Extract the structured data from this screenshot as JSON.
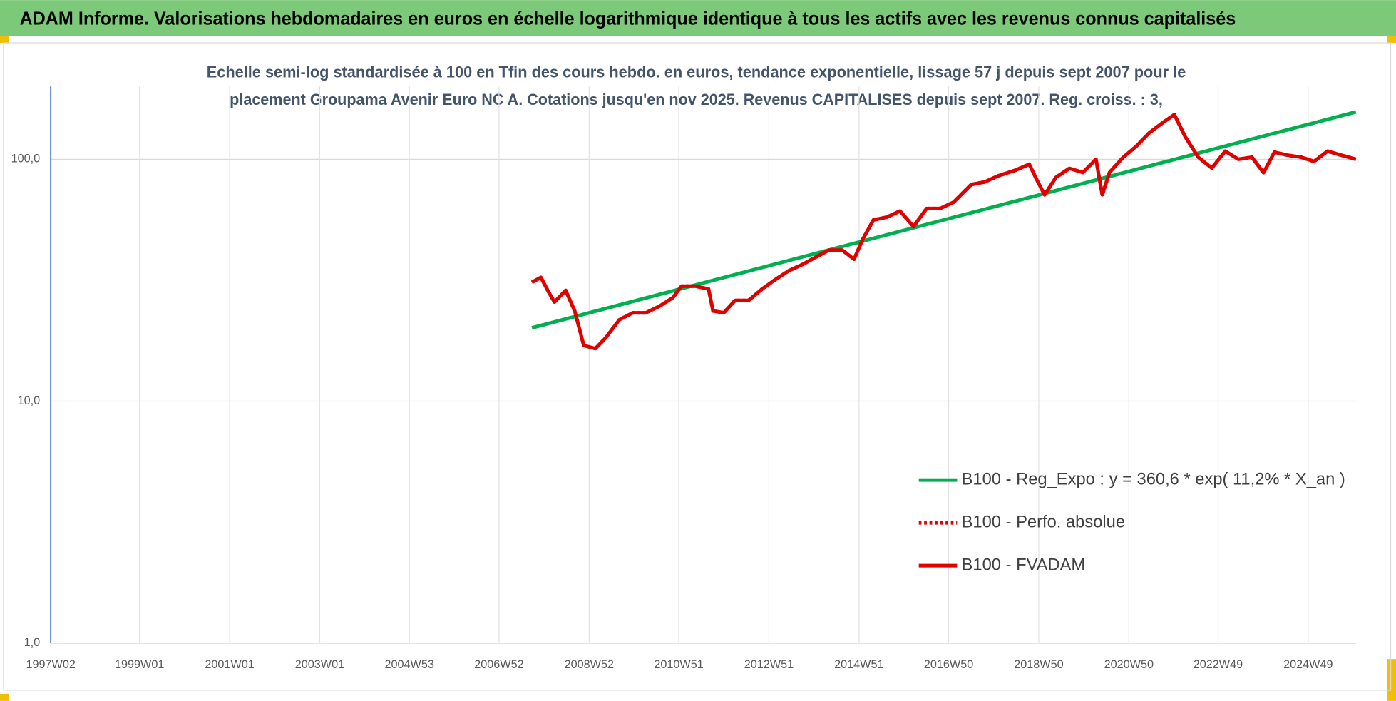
{
  "chart_data": {
    "type": "line",
    "title": "ADAM Informe. Valorisations hebdomadaires en euros en échelle logarithmique identique à tous les actifs avec les revenus connus capitalisés",
    "subtitle": [
      "Echelle semi-log standardisée à 100 en Tfin des cours hebdo. en euros, tendance exponentielle, lissage 57 j depuis sept 2007 pour le",
      "placement Groupama Avenir Euro NC A. Cotations jusqu'en nov 2025. Revenus CAPITALISES depuis sept 2007. Reg. croiss. : 3,"
    ],
    "log_scale": true,
    "grid": true,
    "legend": "lower-right",
    "xlim": [
      1997.03,
      2026.0
    ],
    "xticks": [
      {
        "value": 1997.03,
        "label": "1997W02"
      },
      {
        "value": 1999.0,
        "label": "1999W01"
      },
      {
        "value": 2001.0,
        "label": "2001W01"
      },
      {
        "value": 2003.0,
        "label": "2003W01"
      },
      {
        "value": 2004.99,
        "label": "2004W53"
      },
      {
        "value": 2006.98,
        "label": "2006W52"
      },
      {
        "value": 2008.98,
        "label": "2008W52"
      },
      {
        "value": 2010.97,
        "label": "2010W51"
      },
      {
        "value": 2012.97,
        "label": "2012W51"
      },
      {
        "value": 2014.97,
        "label": "2014W51"
      },
      {
        "value": 2016.96,
        "label": "2016W50"
      },
      {
        "value": 2018.96,
        "label": "2018W50"
      },
      {
        "value": 2020.96,
        "label": "2020W50"
      },
      {
        "value": 2022.94,
        "label": "2022W49"
      },
      {
        "value": 2024.94,
        "label": "2024W49"
      }
    ],
    "ylim": [
      1,
      200
    ],
    "yticks": [
      {
        "value": 1,
        "label": "1,0"
      },
      {
        "value": 10,
        "label": "10,0"
      },
      {
        "value": 100,
        "label": "100,0"
      }
    ],
    "series": [
      {
        "name": "B100 - Reg_Expo : y = 360,6 * exp( 11,2% *  X_an )",
        "color": "#00b050",
        "style": "solid",
        "x": [
          2007.71,
          2026.0
        ],
        "values": [
          20.1,
          157
        ]
      },
      {
        "name": "B100 - Perfo. absolue",
        "color": "#e00000",
        "style": "dotted",
        "x": [
          2007.71,
          2007.91,
          2008.07,
          2008.21,
          2008.46,
          2008.66,
          2008.86,
          2009.12,
          2009.35,
          2009.65,
          2009.95,
          2010.24,
          2010.54,
          2010.84,
          2011.03,
          2011.33,
          2011.63,
          2011.73,
          2011.97,
          2012.22,
          2012.52,
          2012.82,
          2013.11,
          2013.41,
          2013.71,
          2014.0,
          2014.3,
          2014.6,
          2014.86,
          2015.05,
          2015.29,
          2015.58,
          2015.88,
          2016.18,
          2016.47,
          2016.77,
          2017.07,
          2017.46,
          2017.76,
          2018.06,
          2018.45,
          2018.75,
          2018.89,
          2019.09,
          2019.34,
          2019.64,
          2019.94,
          2020.23,
          2020.37,
          2020.53,
          2020.83,
          2021.12,
          2021.42,
          2021.72,
          2021.97,
          2022.21,
          2022.5,
          2022.8,
          2023.1,
          2023.39,
          2023.69,
          2023.95,
          2024.19,
          2024.48,
          2024.78,
          2025.07,
          2025.37,
          2025.67,
          2026.0
        ],
        "values": [
          31,
          32.5,
          28.5,
          25.7,
          28.7,
          23.6,
          17.0,
          16.5,
          18.3,
          21.7,
          23.2,
          23.2,
          24.7,
          26.8,
          29.9,
          29.9,
          29.1,
          23.6,
          23.2,
          26.1,
          26.1,
          29.1,
          31.8,
          34.6,
          36.7,
          39.3,
          42.1,
          42.1,
          38.6,
          46.6,
          56.1,
          57.6,
          61.1,
          52.7,
          62.6,
          62.6,
          66.5,
          78.6,
          80.6,
          85.4,
          90.2,
          95.4,
          84.1,
          71.3,
          84.1,
          91.7,
          88.2,
          100,
          71.3,
          88.2,
          101.7,
          113,
          129,
          142,
          153,
          124,
          102,
          92,
          108,
          100,
          102,
          88,
          107,
          104,
          102,
          98,
          108,
          104,
          100
        ]
      },
      {
        "name": "B100 - FVADAM",
        "color": "#e00000",
        "style": "solid",
        "x": [
          2007.71,
          2007.91,
          2008.07,
          2008.21,
          2008.46,
          2008.66,
          2008.86,
          2009.12,
          2009.35,
          2009.65,
          2009.95,
          2010.24,
          2010.54,
          2010.84,
          2011.03,
          2011.33,
          2011.63,
          2011.73,
          2011.97,
          2012.22,
          2012.52,
          2012.82,
          2013.11,
          2013.41,
          2013.71,
          2014.0,
          2014.3,
          2014.6,
          2014.86,
          2015.05,
          2015.29,
          2015.58,
          2015.88,
          2016.18,
          2016.47,
          2016.77,
          2017.07,
          2017.46,
          2017.76,
          2018.06,
          2018.45,
          2018.75,
          2018.89,
          2019.09,
          2019.34,
          2019.64,
          2019.94,
          2020.23,
          2020.37,
          2020.53,
          2020.83,
          2021.12,
          2021.42,
          2021.72,
          2021.97,
          2022.21,
          2022.5,
          2022.8,
          2023.1,
          2023.39,
          2023.69,
          2023.95,
          2024.19,
          2024.48,
          2024.78,
          2025.07,
          2025.37,
          2025.67,
          2026.0
        ],
        "values": [
          31,
          32.5,
          28.5,
          25.7,
          28.7,
          23.6,
          17.0,
          16.5,
          18.3,
          21.7,
          23.2,
          23.2,
          24.7,
          26.8,
          29.9,
          29.9,
          29.1,
          23.6,
          23.2,
          26.1,
          26.1,
          29.1,
          31.8,
          34.6,
          36.7,
          39.3,
          42.1,
          42.1,
          38.6,
          46.6,
          56.1,
          57.6,
          61.1,
          52.7,
          62.6,
          62.6,
          66.5,
          78.6,
          80.6,
          85.4,
          90.2,
          95.4,
          84.1,
          71.3,
          84.1,
          91.7,
          88.2,
          100,
          71.3,
          88.2,
          101.7,
          113,
          129,
          142,
          153,
          124,
          102,
          92,
          108,
          100,
          102,
          88,
          107,
          104,
          102,
          98,
          108,
          104,
          100
        ]
      }
    ]
  }
}
